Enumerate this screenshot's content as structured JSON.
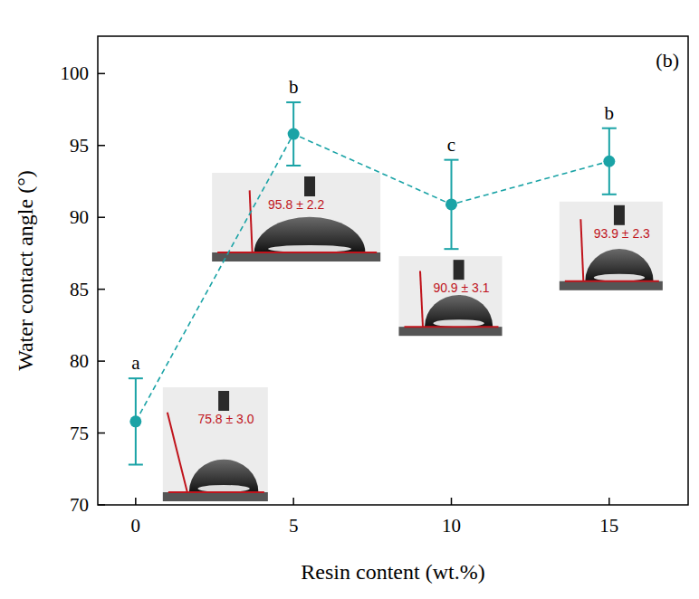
{
  "chart_data": {
    "type": "line",
    "x_label": "Resin content (wt.%)",
    "y_label": "Water contact angle (°)",
    "panel": "(b)",
    "x": [
      0,
      5,
      10,
      15
    ],
    "xlim": [
      -1.2,
      17.5
    ],
    "xticks": [
      0,
      5,
      10,
      15
    ],
    "ylim": [
      70,
      102.6
    ],
    "yticks": [
      70,
      75,
      80,
      85,
      90,
      95,
      100
    ],
    "grid": false,
    "data_labels": true,
    "annotations": [
      "a",
      "b",
      "c",
      "b"
    ],
    "series": [
      {
        "color": "#1aa3a6",
        "marker": "circle",
        "line_style": "dashed",
        "values": [
          75.8,
          95.8,
          90.9,
          93.9
        ],
        "errors": [
          3.0,
          2.2,
          3.1,
          2.3
        ],
        "value_labels": [
          "75.8 ± 3.0",
          "95.8 ± 2.2",
          "90.9 ± 3.1",
          "93.9 ± 2.3"
        ]
      }
    ]
  }
}
